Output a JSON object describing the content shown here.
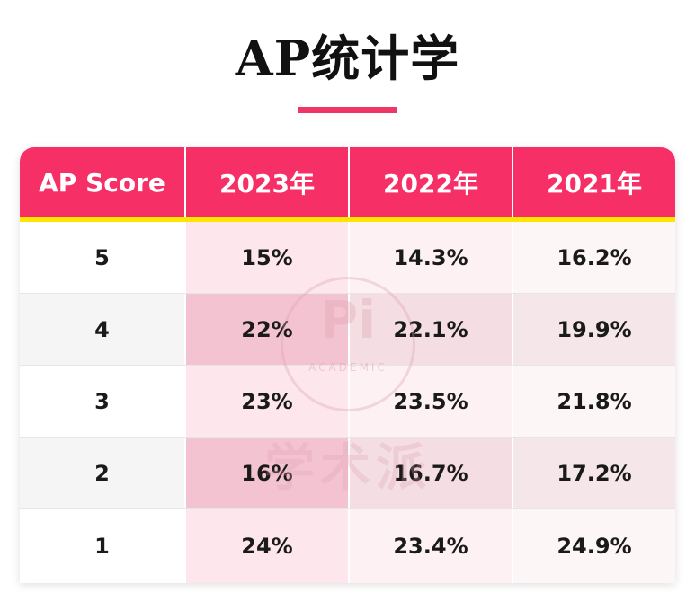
{
  "title": "AP统计学",
  "accent_color": "#f72f67",
  "stripe_color": "#ffe600",
  "table": {
    "headers": [
      "AP Score",
      "2023年",
      "2022年",
      "2021年"
    ],
    "rows": [
      {
        "score": "5",
        "y2023": "15%",
        "y2022": "14.3%",
        "y2021": "16.2%"
      },
      {
        "score": "4",
        "y2023": "22%",
        "y2022": "22.1%",
        "y2021": "19.9%"
      },
      {
        "score": "3",
        "y2023": "23%",
        "y2022": "23.5%",
        "y2021": "21.8%"
      },
      {
        "score": "2",
        "y2023": "16%",
        "y2022": "16.7%",
        "y2021": "17.2%"
      },
      {
        "score": "1",
        "y2023": "24%",
        "y2022": "23.4%",
        "y2021": "24.9%"
      }
    ]
  },
  "watermark": {
    "logo_text": "Pi",
    "logo_subtext": "ACADEMIC",
    "brand_text": "学术派"
  }
}
